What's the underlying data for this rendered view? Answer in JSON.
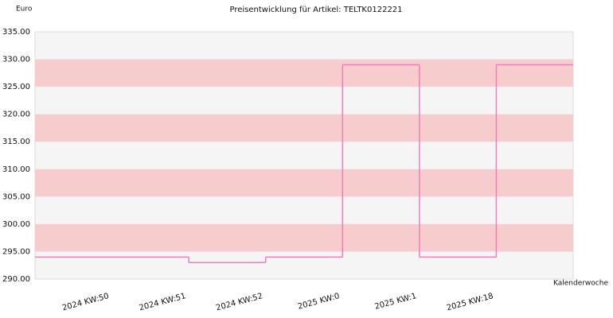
{
  "chart_data": {
    "type": "step",
    "title": "Preisentwicklung für Artikel: TELTK0122221",
    "y_label": "Euro",
    "x_label": "Kalenderwoche",
    "categories": [
      null,
      "2024 KW:50",
      "2024 KW:51",
      "2024 KW:52",
      "2025 KW:0",
      "2025 KW:1",
      "2025 KW:18"
    ],
    "series": [
      {
        "color": "#f27cc0",
        "values": [
          294,
          294,
          293,
          294,
          329,
          294,
          329
        ]
      }
    ],
    "ylim": [
      290,
      335
    ],
    "yticks": [
      {
        "value": 290,
        "label": "290.00"
      },
      {
        "value": 295,
        "label": "295.00"
      },
      {
        "value": 300,
        "label": "300.00"
      },
      {
        "value": 305,
        "label": "305.00"
      },
      {
        "value": 310,
        "label": "310.00"
      },
      {
        "value": 315,
        "label": "315.00"
      },
      {
        "value": 320,
        "label": "320.00"
      },
      {
        "value": 325,
        "label": "325.00"
      },
      {
        "value": 330,
        "label": "330.00"
      },
      {
        "value": 335,
        "label": "335.00"
      }
    ],
    "bands": true,
    "band_color": "#f7cccc",
    "background": "#f5f5f5"
  }
}
